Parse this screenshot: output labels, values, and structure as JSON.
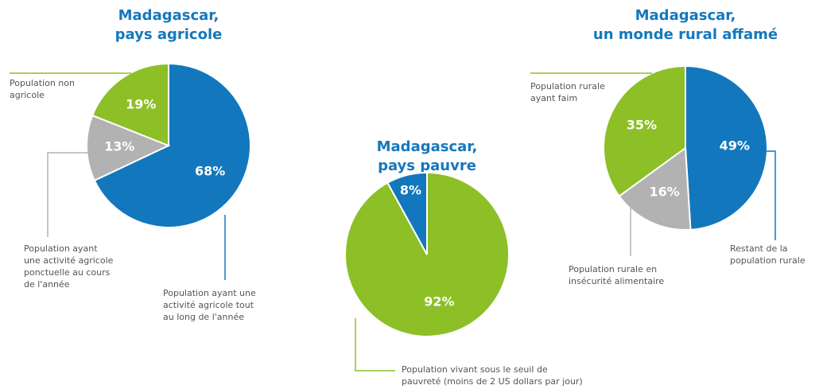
{
  "chart_data": [
    {
      "type": "pie",
      "title": [
        "Madagascar,",
        "pays agricole"
      ],
      "categories": [
        "Population ayant une\nactivité agricole tout\nau long de l'année",
        "Population ayant\nune activité agricole\nponctuelle au cours\nde l'année",
        "Population non\nagricole"
      ],
      "values": [
        68,
        13,
        19
      ],
      "value_labels": [
        "68%",
        "13%",
        "19%"
      ],
      "colors": [
        "#1277bd",
        "#b2b2b2",
        "#8dbf27"
      ]
    },
    {
      "type": "pie",
      "title": [
        "Madagascar,",
        "pays pauvre"
      ],
      "categories": [
        "Population vivant sous le seuil de\npauvreté (moins de 2 US dollars par jour)",
        null
      ],
      "values": [
        92,
        8
      ],
      "value_labels": [
        "92%",
        "8%"
      ],
      "colors": [
        "#8dbf27",
        "#1277bd"
      ]
    },
    {
      "type": "pie",
      "title": [
        "Madagascar,",
        "un monde rural affamé"
      ],
      "categories": [
        "Restant de la\npopulation rurale",
        "Population rurale en\ninsécurité alimentaire",
        "Population rurale\nayant faim"
      ],
      "values": [
        49,
        16,
        35
      ],
      "value_labels": [
        "49%",
        "16%",
        "35%"
      ],
      "colors": [
        "#1277bd",
        "#b2b2b2",
        "#8dbf27"
      ]
    }
  ]
}
